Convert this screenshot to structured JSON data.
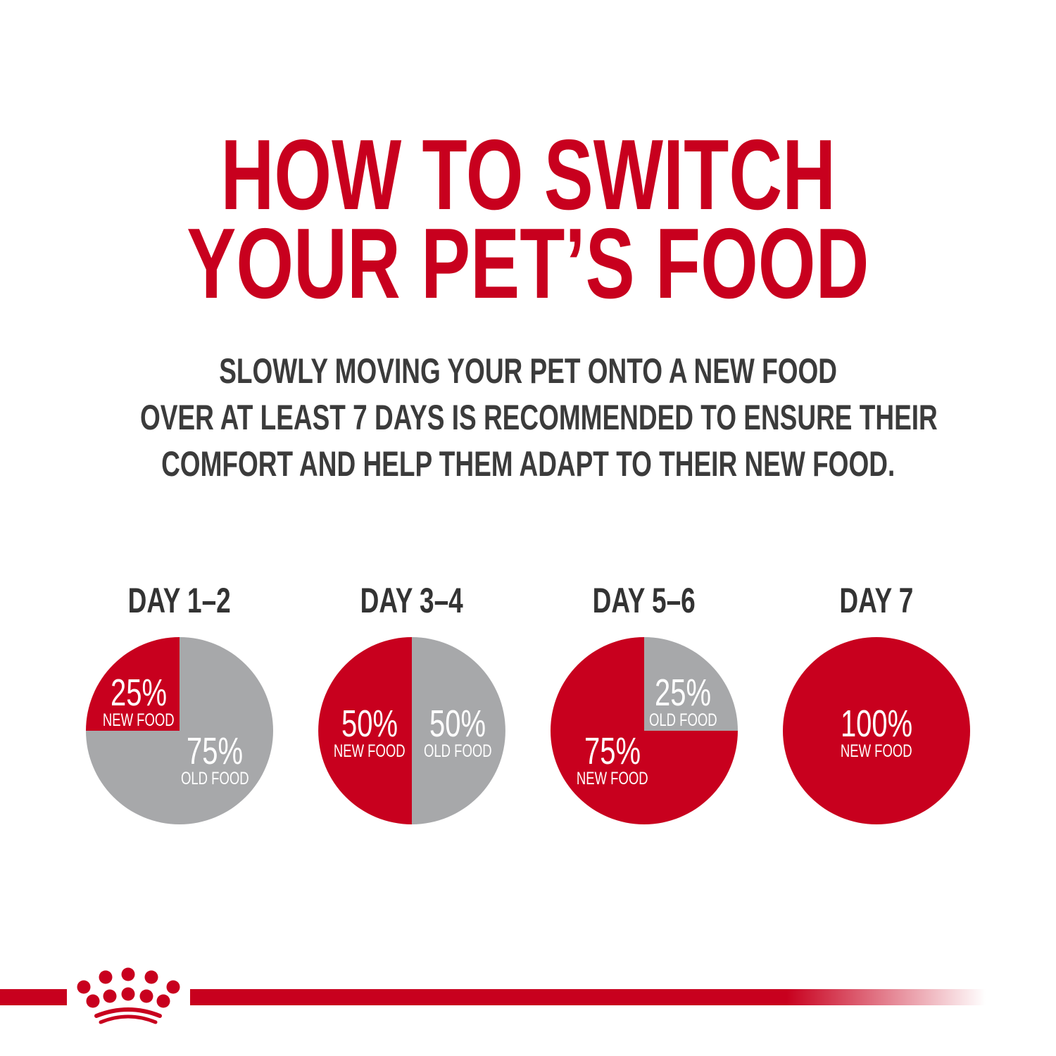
{
  "title": {
    "line1": "HOW TO SWITCH",
    "line2": "YOUR PET’S FOOD"
  },
  "intro": {
    "line1": "SLOWLY MOVING YOUR PET ONTO A NEW FOOD",
    "line2": "OVER AT LEAST 7 DAYS IS RECOMMENDED TO ENSURE THEIR",
    "line3": "COMFORT AND HELP THEM ADAPT TO THEIR NEW FOOD."
  },
  "colors": {
    "new_food": "#c8001e",
    "old_food": "#a7a8aa",
    "title": "#c8001e",
    "text": "#3b3b3b"
  },
  "logo": {
    "type": "crown-icon",
    "color": "#c8001e"
  },
  "chart_data": [
    {
      "type": "pie",
      "title": "DAY 1–2",
      "series": [
        {
          "name": "NEW FOOD",
          "value": 25,
          "label": "25%"
        },
        {
          "name": "OLD FOOD",
          "value": 75,
          "label": "75%"
        }
      ]
    },
    {
      "type": "pie",
      "title": "DAY 3–4",
      "series": [
        {
          "name": "NEW FOOD",
          "value": 50,
          "label": "50%"
        },
        {
          "name": "OLD FOOD",
          "value": 50,
          "label": "50%"
        }
      ]
    },
    {
      "type": "pie",
      "title": "DAY 5–6",
      "series": [
        {
          "name": "NEW FOOD",
          "value": 75,
          "label": "75%"
        },
        {
          "name": "OLD FOOD",
          "value": 25,
          "label": "25%"
        }
      ]
    },
    {
      "type": "pie",
      "title": "DAY 7",
      "series": [
        {
          "name": "NEW FOOD",
          "value": 100,
          "label": "100%"
        }
      ]
    }
  ]
}
